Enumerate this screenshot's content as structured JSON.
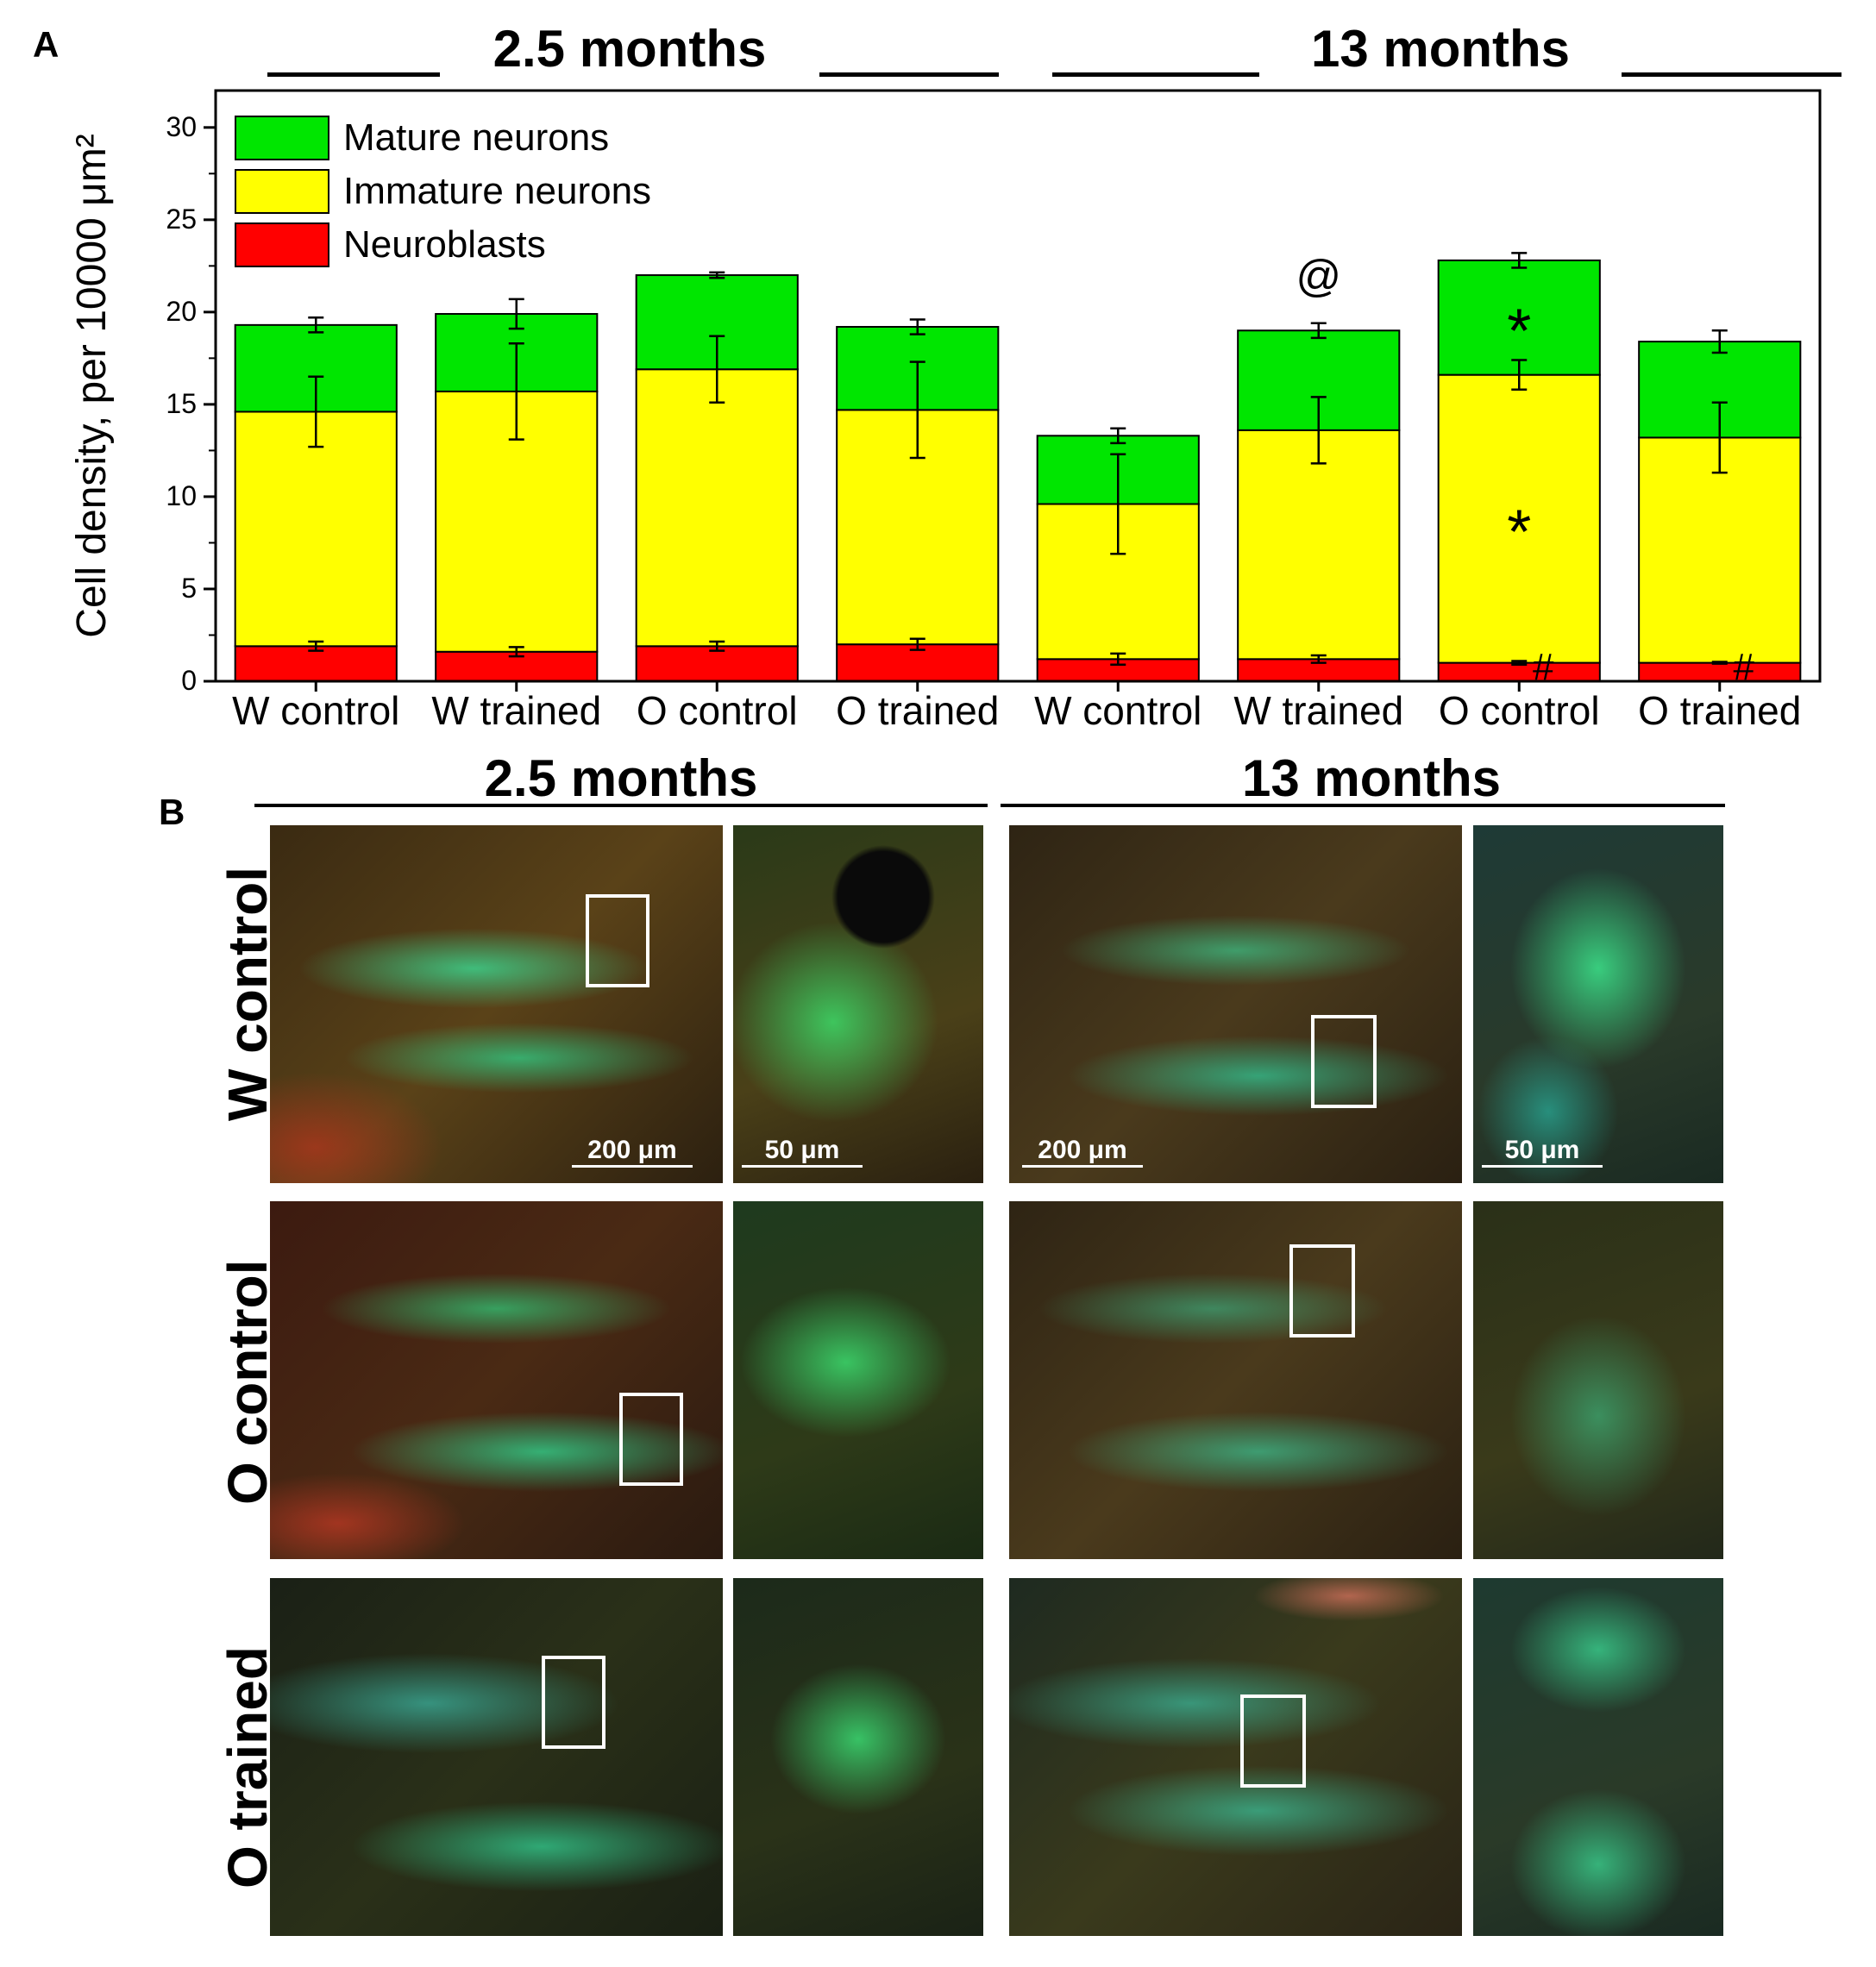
{
  "panel_a_label": "A",
  "panel_b_label": "B",
  "panel_a": {
    "group_titles": [
      "2.5 months",
      "13 months"
    ]
  },
  "chart_data": {
    "type": "bar",
    "stacked": true,
    "title": "",
    "xlabel": "",
    "ylabel": "Cell density, per 10000 μm²",
    "ylim": [
      0,
      32
    ],
    "yticks": [
      0,
      5,
      10,
      15,
      20,
      25,
      30
    ],
    "categories": [
      "W control",
      "W trained",
      "O control",
      "O trained",
      "W control",
      "W trained",
      "O control",
      "O trained"
    ],
    "groups": [
      {
        "name": "2.5 months",
        "categories": [
          0,
          1,
          2,
          3
        ]
      },
      {
        "name": "13 months",
        "categories": [
          4,
          5,
          6,
          7
        ]
      }
    ],
    "series": [
      {
        "name": "Neuroblasts",
        "color": "#ff0000",
        "values": [
          1.9,
          1.6,
          1.9,
          2.0,
          1.2,
          1.2,
          1.0,
          1.0
        ],
        "errors": [
          0.25,
          0.25,
          0.25,
          0.3,
          0.3,
          0.2,
          0.1,
          0.05
        ]
      },
      {
        "name": "Immature neurons",
        "color": "#ffff00",
        "values": [
          12.7,
          14.1,
          15.0,
          12.7,
          8.4,
          12.4,
          15.6,
          12.2
        ],
        "errors": [
          1.9,
          2.6,
          1.8,
          2.6,
          2.7,
          1.8,
          0.8,
          1.9
        ]
      },
      {
        "name": "Mature neurons",
        "color": "#00e600",
        "values": [
          4.7,
          4.2,
          5.1,
          4.5,
          3.7,
          5.4,
          6.2,
          5.2
        ],
        "errors": [
          0.4,
          0.8,
          0.15,
          0.4,
          0.4,
          0.4,
          0.4,
          0.6
        ]
      }
    ],
    "legend": [
      "Mature neurons",
      "Immature neurons",
      "Neuroblasts"
    ],
    "legend_position": "top-left",
    "annotations": [
      {
        "text": "@",
        "category": 5,
        "series": "Mature neurons"
      },
      {
        "text": "*",
        "category": 6,
        "series": "Mature neurons"
      },
      {
        "text": "*",
        "category": 6,
        "series": "Immature neurons"
      },
      {
        "text": "#",
        "category": 6,
        "series": "Neuroblasts"
      },
      {
        "text": "#",
        "category": 7,
        "series": "Neuroblasts"
      }
    ]
  },
  "panel_b": {
    "group_titles": [
      "2.5 months",
      "13 months"
    ],
    "row_labels": [
      "W control",
      "O control",
      "O trained"
    ],
    "scale_bars": {
      "overview": "200 μm",
      "zoom": "50 μm"
    }
  }
}
